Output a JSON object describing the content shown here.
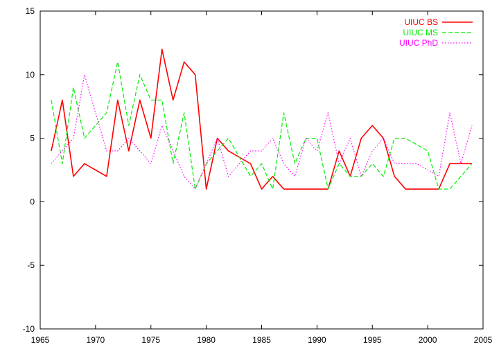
{
  "chart_data": {
    "type": "line",
    "title": "",
    "xlabel": "",
    "ylabel": "",
    "xlim": [
      1965,
      2005
    ],
    "ylim": [
      -10,
      15
    ],
    "xticks": [
      1965,
      1970,
      1975,
      1980,
      1985,
      1990,
      1995,
      2000,
      2005
    ],
    "yticks": [
      -10,
      -5,
      0,
      5,
      10,
      15
    ],
    "grid": false,
    "legend_position": "top-right",
    "x": [
      1966,
      1967,
      1968,
      1969,
      1970,
      1971,
      1972,
      1973,
      1974,
      1975,
      1976,
      1977,
      1978,
      1979,
      1980,
      1981,
      1982,
      1983,
      1984,
      1985,
      1986,
      1987,
      1988,
      1989,
      1990,
      1991,
      1992,
      1993,
      1994,
      1995,
      1996,
      1997,
      1998,
      1999,
      2000,
      2001,
      2002,
      2003,
      2004
    ],
    "series": [
      {
        "name": "UIUC BS",
        "color": "#ff0000",
        "style": "solid",
        "values": [
          4,
          8,
          2,
          3,
          2.5,
          2,
          8,
          4,
          8,
          5,
          12,
          8,
          11,
          10,
          1,
          5,
          4,
          3.5,
          3,
          1,
          2,
          1,
          1,
          1,
          1,
          1,
          4,
          2,
          5,
          6,
          5,
          2,
          1,
          1,
          1,
          1,
          3,
          3,
          3
        ]
      },
      {
        "name": "UIUC MS",
        "color": "#00ee00",
        "style": "dashed",
        "values": [
          8,
          3,
          9,
          5,
          6,
          7,
          11,
          6,
          10,
          8,
          8,
          3,
          7,
          1,
          3,
          4,
          5,
          3.5,
          2,
          3,
          1,
          7,
          3,
          5,
          5,
          1,
          3,
          2,
          2,
          3,
          2,
          5,
          5,
          4.5,
          4,
          1,
          1,
          2,
          3
        ]
      },
      {
        "name": "UIUC PhD",
        "color": "#ff00ff",
        "style": "dotted",
        "values": [
          3,
          4,
          5,
          10,
          7,
          4,
          4,
          5,
          4,
          3,
          6,
          4,
          2,
          1,
          3,
          5,
          2,
          3,
          4,
          4,
          5,
          3,
          2,
          5,
          4,
          7,
          3,
          5,
          2,
          4,
          5,
          3,
          3,
          3,
          2.5,
          2,
          7,
          3,
          6
        ]
      }
    ]
  }
}
